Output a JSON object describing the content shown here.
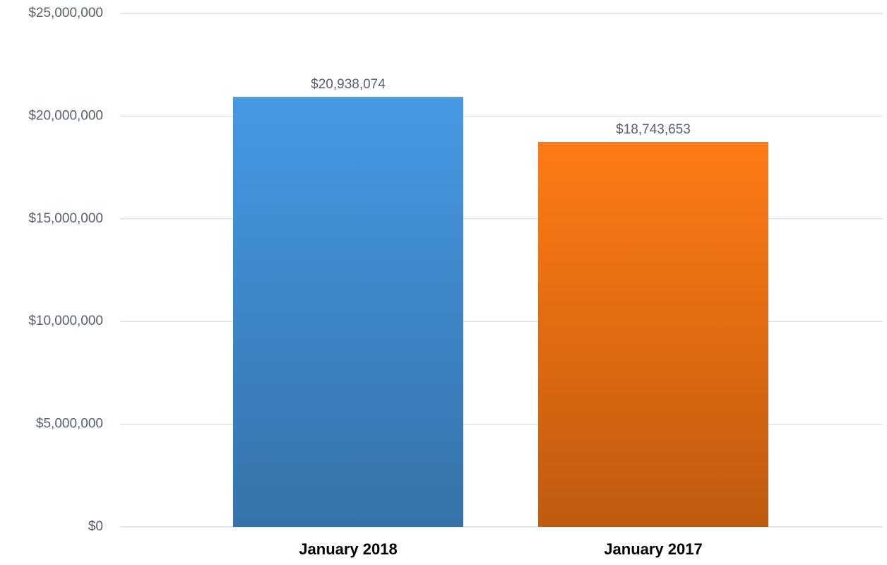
{
  "chart_data": {
    "type": "bar",
    "categories": [
      "January 2018",
      "January 2017"
    ],
    "values": [
      20938074,
      18743653
    ],
    "value_labels": [
      "$20,938,074",
      "$18,743,653"
    ],
    "colors": [
      "#4699e3",
      "#ff7a14"
    ],
    "ylim": [
      0,
      25000000
    ],
    "yticks": [
      {
        "value": 0,
        "label": "$0"
      },
      {
        "value": 5000000,
        "label": "$5,000,000"
      },
      {
        "value": 10000000,
        "label": "$10,000,000"
      },
      {
        "value": 15000000,
        "label": "$15,000,000"
      },
      {
        "value": 20000000,
        "label": "$20,000,000"
      },
      {
        "value": 25000000,
        "label": "$25,000,000"
      }
    ],
    "grid": true
  }
}
